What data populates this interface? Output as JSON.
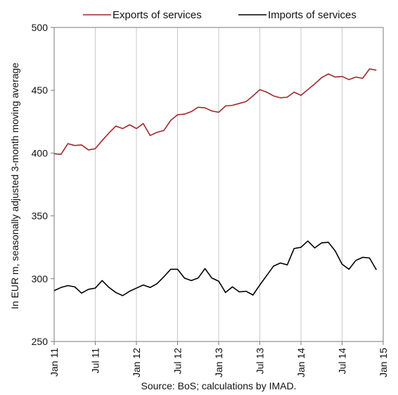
{
  "chart_data": {
    "type": "line",
    "title": "",
    "ylabel": "In EUR m, seasonally adjusted 3-month moving average",
    "xlabel": "",
    "source": "Source: BoS; calculations by IMAD.",
    "ylim": [
      250,
      500
    ],
    "yticks": [
      "250",
      "300",
      "350",
      "400",
      "450",
      "500"
    ],
    "xtick_labels": [
      "Jan 11",
      "Jul 11",
      "Jan 12",
      "Jul 12",
      "Jan 13",
      "Jul 13",
      "Jan 14",
      "Jul 14",
      "Jan 15"
    ],
    "xtick_months": [
      0,
      6,
      12,
      18,
      24,
      30,
      36,
      42,
      48
    ],
    "x_range_months": [
      0,
      48
    ],
    "grid": {
      "x": true,
      "y": false
    },
    "legend_position": "top",
    "x": [
      "Jan 11",
      "Feb 11",
      "Mar 11",
      "Apr 11",
      "May 11",
      "Jun 11",
      "Jul 11",
      "Aug 11",
      "Sep 11",
      "Oct 11",
      "Nov 11",
      "Dec 11",
      "Jan 12",
      "Feb 12",
      "Mar 12",
      "Apr 12",
      "May 12",
      "Jun 12",
      "Jul 12",
      "Aug 12",
      "Sep 12",
      "Oct 12",
      "Nov 12",
      "Dec 12",
      "Jan 13",
      "Feb 13",
      "Mar 13",
      "Apr 13",
      "May 13",
      "Jun 13",
      "Jul 13",
      "Aug 13",
      "Sep 13",
      "Oct 13",
      "Nov 13",
      "Dec 13",
      "Jan 14",
      "Feb 14",
      "Mar 14",
      "Apr 14",
      "May 14",
      "Jun 14",
      "Jul 14",
      "Aug 14",
      "Sep 14",
      "Oct 14",
      "Nov 14",
      "Dec 14"
    ],
    "series": [
      {
        "name": "Exports of services",
        "color": "#a0282c",
        "values": [
          399.5,
          399.0,
          407.5,
          406.0,
          406.5,
          402.5,
          403.5,
          410.0,
          416.0,
          421.5,
          419.5,
          422.5,
          419.5,
          423.5,
          414.0,
          416.5,
          418.0,
          426.0,
          430.5,
          431.0,
          433.0,
          436.5,
          436.0,
          433.5,
          432.5,
          437.5,
          438.0,
          439.5,
          441.0,
          445.5,
          450.5,
          448.5,
          445.5,
          444.0,
          444.5,
          448.5,
          446.0,
          450.5,
          455.0,
          460.0,
          463.0,
          460.5,
          461.0,
          458.5,
          460.5,
          459.5,
          467.0,
          466.0
        ]
      },
      {
        "name": "Imports of services",
        "color": "#000000",
        "values": [
          290.5,
          293.0,
          294.5,
          293.5,
          288.5,
          291.5,
          292.5,
          298.5,
          293.0,
          289.0,
          286.5,
          290.0,
          292.5,
          295.0,
          293.0,
          296.0,
          301.5,
          307.5,
          307.5,
          300.5,
          298.5,
          300.5,
          308.0,
          300.5,
          298.0,
          289.0,
          293.5,
          289.5,
          290.0,
          287.0,
          295.0,
          302.5,
          310.0,
          312.5,
          311.0,
          324.0,
          325.0,
          330.0,
          324.5,
          328.5,
          329.0,
          322.0,
          311.5,
          307.5,
          314.5,
          317.0,
          316.5,
          307.0
        ]
      }
    ]
  }
}
